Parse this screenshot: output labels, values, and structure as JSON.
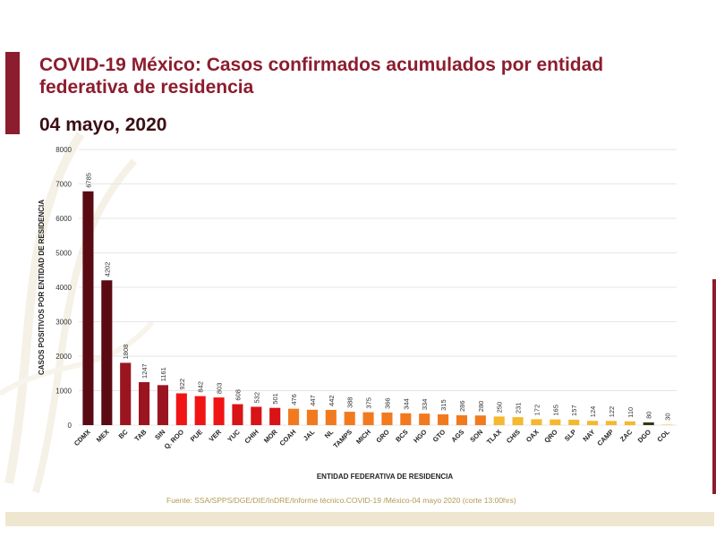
{
  "header": {
    "title": "COVID-19 México: Casos confirmados acumulados por entidad federativa de residencia",
    "date": "04 mayo, 2020"
  },
  "footer": {
    "source": "Fuente: SSA/SPPS/DGE/DIE/InDRE/Informe técnico.COVID-19 /México-04 mayo 2020 (corte 13:00hrs)"
  },
  "colors": {
    "brand": "#8c1d2e",
    "gold": "#b49a52"
  },
  "chart_data": {
    "type": "bar",
    "ylabel": "CASOS POSITIVOS POR ENTIDAD DE RESIDENCIA",
    "xlabel": "ENTIDAD FEDERATIVA DE RESIDENCIA",
    "ylim": [
      0,
      8000
    ],
    "yticks": [
      0,
      1000,
      2000,
      3000,
      4000,
      5000,
      6000,
      7000,
      8000
    ],
    "grid": true,
    "categories": [
      "CDMX",
      "MEX",
      "BC",
      "TAB",
      "SIN",
      "Q. ROO",
      "PUE",
      "VER",
      "YUC",
      "CHIH",
      "MOR",
      "COAH",
      "JAL",
      "NL",
      "TAMPS",
      "MICH",
      "GRO",
      "BCS",
      "HGO",
      "GTO",
      "AGS",
      "SON",
      "TLAX",
      "CHIS",
      "OAX",
      "QRO",
      "SLP",
      "NAY",
      "CAMP",
      "ZAC",
      "DGO",
      "COL"
    ],
    "values": [
      6785,
      4202,
      1808,
      1247,
      1161,
      922,
      842,
      803,
      608,
      532,
      501,
      476,
      447,
      442,
      388,
      375,
      366,
      344,
      334,
      315,
      286,
      280,
      250,
      231,
      172,
      165,
      157,
      124,
      122,
      110,
      80,
      30
    ],
    "colors": [
      "#5a0a12",
      "#5a0a12",
      "#9b1520",
      "#9b1520",
      "#9b1520",
      "#f01414",
      "#f01414",
      "#f01414",
      "#d81416",
      "#d81416",
      "#d81416",
      "#f27a1e",
      "#f27a1e",
      "#f27a1e",
      "#f27a1e",
      "#f27a1e",
      "#f27a1e",
      "#f27a1e",
      "#f27a1e",
      "#f27a1e",
      "#f27a1e",
      "#f27a1e",
      "#f5b82e",
      "#f5b82e",
      "#f5b82e",
      "#f5b82e",
      "#f5b82e",
      "#f5b82e",
      "#f5b82e",
      "#f5b82e",
      "#2e3a14",
      "#f5e0a0"
    ]
  }
}
